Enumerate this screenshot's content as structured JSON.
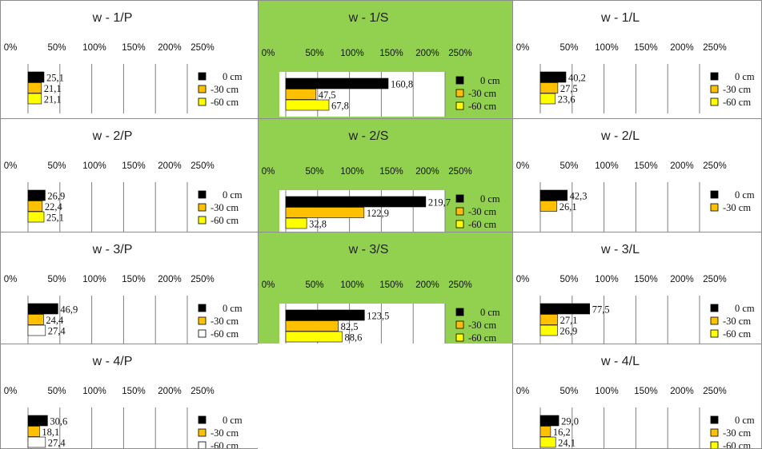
{
  "colors": {
    "highlight_bg": "#92d050",
    "plain_bg": "#ffffff",
    "series_0cm": "#000000",
    "series_30cm": "#ffc000",
    "series_60cm": "#ffff00",
    "series_60cm_open": "#ffffff"
  },
  "legend_labels": [
    "0 cm",
    "-30 cm",
    "-60 cm"
  ],
  "axis_ticks": [
    "0%",
    "50%",
    "100%",
    "150%",
    "200%",
    "250%"
  ],
  "chart_data": [
    {
      "type": "bar",
      "orientation": "horizontal",
      "title": "w - 1/P",
      "highlight": false,
      "series": [
        {
          "name": "0 cm",
          "values": [
            25.1
          ],
          "labels": [
            "25,1"
          ]
        },
        {
          "name": "-30 cm",
          "values": [
            21.1
          ],
          "labels": [
            "21,1"
          ]
        },
        {
          "name": "-60 cm",
          "values": [
            21.1
          ],
          "labels": [
            "21,1"
          ]
        }
      ],
      "legend": [
        "0 cm",
        "-30 cm",
        "-60 cm"
      ],
      "legend_colors": [
        "#000000",
        "#ffc000",
        "#ffff00"
      ],
      "xticks": [
        "0%",
        "50%",
        "100%",
        "150%",
        "200%",
        "250%"
      ],
      "xlim": [
        0,
        250
      ],
      "grid": true,
      "legend_position": "right"
    },
    {
      "type": "bar",
      "orientation": "horizontal",
      "title": "w - 1/S",
      "highlight": true,
      "series": [
        {
          "name": "0 cm",
          "values": [
            160.8
          ],
          "labels": [
            "160,8"
          ]
        },
        {
          "name": "-30 cm",
          "values": [
            47.5
          ],
          "labels": [
            "47,5"
          ]
        },
        {
          "name": "-60 cm",
          "values": [
            67.8
          ],
          "labels": [
            "67,8"
          ]
        }
      ],
      "legend": [
        "0 cm",
        "-30 cm",
        "-60 cm"
      ],
      "legend_colors": [
        "#000000",
        "#ffc000",
        "#ffff00"
      ],
      "xticks": [
        "0%",
        "50%",
        "100%",
        "150%",
        "200%",
        "250%"
      ],
      "xlim": [
        0,
        250
      ],
      "grid": true,
      "legend_position": "right"
    },
    {
      "type": "bar",
      "orientation": "horizontal",
      "title": "w - 1/L",
      "highlight": false,
      "series": [
        {
          "name": "0 cm",
          "values": [
            40.2
          ],
          "labels": [
            "40,2"
          ]
        },
        {
          "name": "-30 cm",
          "values": [
            27.5
          ],
          "labels": [
            "27,5"
          ]
        },
        {
          "name": "-60 cm",
          "values": [
            23.6
          ],
          "labels": [
            "23,6"
          ]
        }
      ],
      "legend": [
        "0 cm",
        "-30 cm",
        "-60 cm"
      ],
      "legend_colors": [
        "#000000",
        "#ffc000",
        "#ffff00"
      ],
      "xticks": [
        "0%",
        "50%",
        "100%",
        "150%",
        "200%",
        "250%"
      ],
      "xlim": [
        0,
        250
      ],
      "grid": true,
      "legend_position": "right"
    },
    {
      "type": "bar",
      "orientation": "horizontal",
      "title": "w - 2/P",
      "highlight": false,
      "series": [
        {
          "name": "0 cm",
          "values": [
            26.9
          ],
          "labels": [
            "26,9"
          ]
        },
        {
          "name": "-30 cm",
          "values": [
            22.4
          ],
          "labels": [
            "22,4"
          ]
        },
        {
          "name": "-60 cm",
          "values": [
            25.1
          ],
          "labels": [
            "25,1"
          ]
        }
      ],
      "legend": [
        "0 cm",
        "-30 cm",
        "-60 cm"
      ],
      "legend_colors": [
        "#000000",
        "#ffc000",
        "#ffff00"
      ],
      "xticks": [
        "0%",
        "50%",
        "100%",
        "150%",
        "200%",
        "250%"
      ],
      "xlim": [
        0,
        250
      ],
      "grid": true,
      "legend_position": "right"
    },
    {
      "type": "bar",
      "orientation": "horizontal",
      "title": "w - 2/S",
      "highlight": true,
      "series": [
        {
          "name": "0 cm",
          "values": [
            219.7
          ],
          "labels": [
            "219,7"
          ]
        },
        {
          "name": "-30 cm",
          "values": [
            122.9
          ],
          "labels": [
            "122,9"
          ]
        },
        {
          "name": "-60 cm",
          "values": [
            32.8
          ],
          "labels": [
            "32,8"
          ]
        }
      ],
      "legend": [
        "0 cm",
        "-30 cm",
        "-60 cm"
      ],
      "legend_colors": [
        "#000000",
        "#ffc000",
        "#ffff00"
      ],
      "xticks": [
        "0%",
        "50%",
        "100%",
        "150%",
        "200%",
        "250%"
      ],
      "xlim": [
        0,
        250
      ],
      "grid": true,
      "legend_position": "right"
    },
    {
      "type": "bar",
      "orientation": "horizontal",
      "title": "w - 2/L",
      "highlight": false,
      "series": [
        {
          "name": "0 cm",
          "values": [
            42.3
          ],
          "labels": [
            "42,3"
          ]
        },
        {
          "name": "-30 cm",
          "values": [
            26.1
          ],
          "labels": [
            "26,1"
          ]
        }
      ],
      "legend": [
        "0 cm",
        "-30 cm"
      ],
      "legend_colors": [
        "#000000",
        "#ffc000"
      ],
      "xticks": [
        "0%",
        "50%",
        "100%",
        "150%",
        "200%",
        "250%"
      ],
      "xlim": [
        0,
        250
      ],
      "grid": true,
      "legend_position": "right"
    },
    {
      "type": "bar",
      "orientation": "horizontal",
      "title": "w - 3/P",
      "highlight": false,
      "series": [
        {
          "name": "0 cm",
          "values": [
            46.9
          ],
          "labels": [
            "46,9"
          ]
        },
        {
          "name": "-30 cm",
          "values": [
            24.4
          ],
          "labels": [
            "24,4"
          ]
        },
        {
          "name": "-60 cm",
          "values": [
            27.4
          ],
          "labels": [
            "27,4"
          ]
        }
      ],
      "legend": [
        "0 cm",
        "-30 cm",
        "-60 cm"
      ],
      "legend_colors": [
        "#000000",
        "#ffc000",
        "#ffffff"
      ],
      "xticks": [
        "0%",
        "50%",
        "100%",
        "150%",
        "200%",
        "250%"
      ],
      "xlim": [
        0,
        250
      ],
      "grid": true,
      "legend_position": "right"
    },
    {
      "type": "bar",
      "orientation": "horizontal",
      "title": "w - 3/S",
      "highlight": true,
      "series": [
        {
          "name": "0 cm",
          "values": [
            123.5
          ],
          "labels": [
            "123,5"
          ]
        },
        {
          "name": "-30 cm",
          "values": [
            82.5
          ],
          "labels": [
            "82,5"
          ]
        },
        {
          "name": "-60 cm",
          "values": [
            88.6
          ],
          "labels": [
            "88,6"
          ]
        }
      ],
      "legend": [
        "0 cm",
        "-30 cm",
        "-60 cm"
      ],
      "legend_colors": [
        "#000000",
        "#ffc000",
        "#ffff00"
      ],
      "xticks": [
        "0%",
        "50%",
        "100%",
        "150%",
        "200%",
        "250%"
      ],
      "xlim": [
        0,
        250
      ],
      "grid": true,
      "legend_position": "right"
    },
    {
      "type": "bar",
      "orientation": "horizontal",
      "title": "w - 3/L",
      "highlight": false,
      "series": [
        {
          "name": "0 cm",
          "values": [
            77.5
          ],
          "labels": [
            "77,5"
          ]
        },
        {
          "name": "-30 cm",
          "values": [
            27.1
          ],
          "labels": [
            "27,1"
          ]
        },
        {
          "name": "-60 cm",
          "values": [
            26.9
          ],
          "labels": [
            "26,9"
          ]
        }
      ],
      "legend": [
        "0 cm",
        "-30 cm",
        "-60 cm"
      ],
      "legend_colors": [
        "#000000",
        "#ffc000",
        "#ffff00"
      ],
      "xticks": [
        "0%",
        "50%",
        "100%",
        "150%",
        "200%",
        "250%"
      ],
      "xlim": [
        0,
        250
      ],
      "grid": true,
      "legend_position": "right"
    },
    {
      "type": "bar",
      "orientation": "horizontal",
      "title": "w - 4/P",
      "highlight": false,
      "series": [
        {
          "name": "0 cm",
          "values": [
            30.6
          ],
          "labels": [
            "30,6"
          ]
        },
        {
          "name": "-30 cm",
          "values": [
            18.1
          ],
          "labels": [
            "18,1"
          ]
        },
        {
          "name": "-60 cm",
          "values": [
            27.4
          ],
          "labels": [
            "27,4"
          ]
        }
      ],
      "legend": [
        "0 cm",
        "-30 cm",
        "-60 cm"
      ],
      "legend_colors": [
        "#000000",
        "#ffc000",
        "#ffffff"
      ],
      "xticks": [
        "0%",
        "50%",
        "100%",
        "150%",
        "200%",
        "250%"
      ],
      "xlim": [
        0,
        250
      ],
      "grid": true,
      "legend_position": "right"
    },
    null,
    {
      "type": "bar",
      "orientation": "horizontal",
      "title": "w - 4/L",
      "highlight": false,
      "series": [
        {
          "name": "0 cm",
          "values": [
            29.0
          ],
          "labels": [
            "29,0"
          ]
        },
        {
          "name": "-30 cm",
          "values": [
            16.2
          ],
          "labels": [
            "16,2"
          ]
        },
        {
          "name": "-60 cm",
          "values": [
            24.1
          ],
          "labels": [
            "24,1"
          ]
        }
      ],
      "legend": [
        "0 cm",
        "-30 cm",
        "-60 cm"
      ],
      "legend_colors": [
        "#000000",
        "#ffc000",
        "#ffff00"
      ],
      "xticks": [
        "0%",
        "50%",
        "100%",
        "150%",
        "200%",
        "250%"
      ],
      "xlim": [
        0,
        250
      ],
      "grid": true,
      "legend_position": "right"
    }
  ]
}
